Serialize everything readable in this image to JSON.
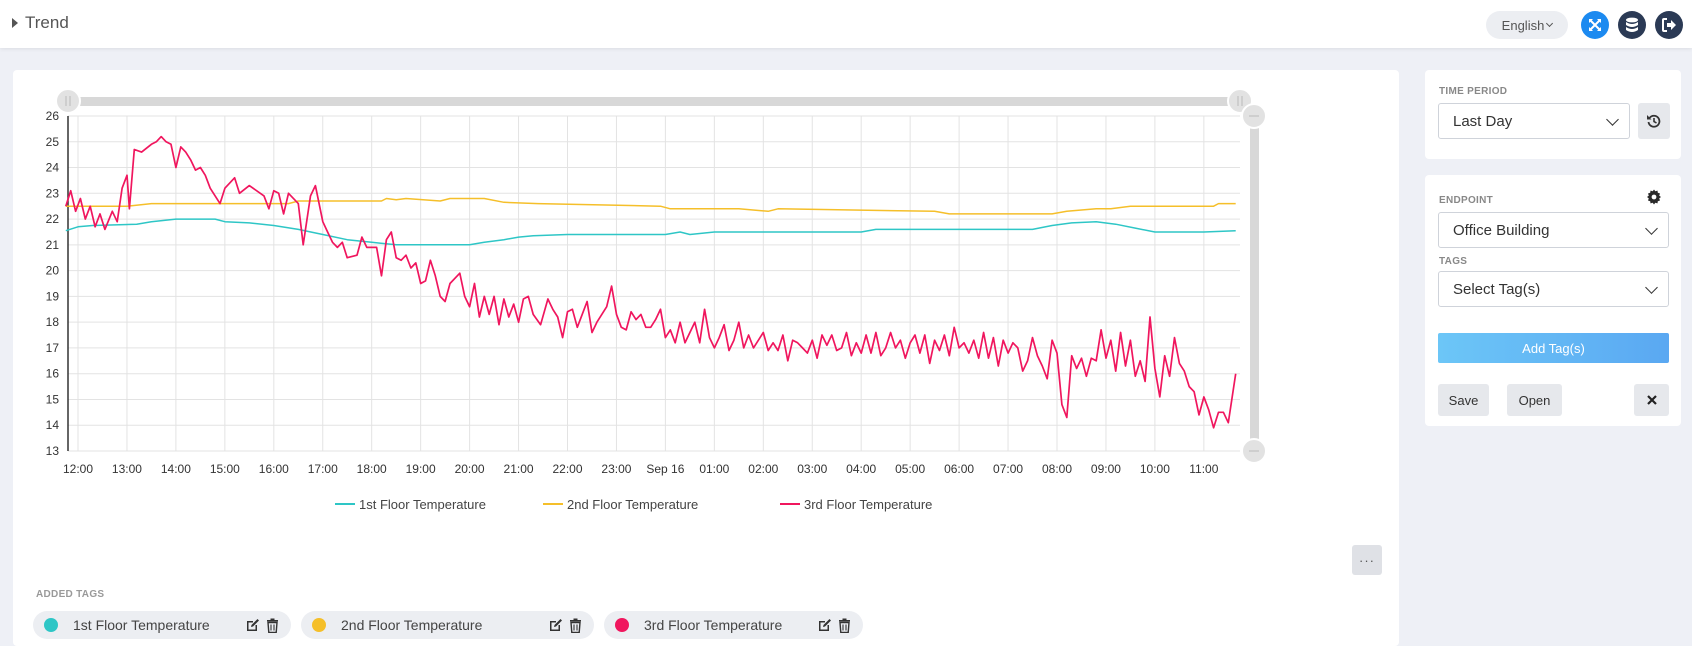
{
  "header": {
    "title": "Trend",
    "language": "English"
  },
  "chart_panel": {
    "more_label": "···",
    "added_tags_label": "ADDED TAGS",
    "tags": [
      {
        "name": "1st Floor Temperature",
        "color": "#2ec6c6"
      },
      {
        "name": "2nd Floor Temperature",
        "color": "#f5bf2a"
      },
      {
        "name": "3rd Floor Temperature",
        "color": "#f0165e"
      }
    ]
  },
  "time_period": {
    "label": "TIME PERIOD",
    "value": "Last Day"
  },
  "endpoint_panel": {
    "endpoint_label": "ENDPOINT",
    "endpoint_value": "Office Building",
    "tags_label": "TAGS",
    "tags_placeholder": "Select Tag(s)",
    "add_tags": "Add Tag(s)",
    "save": "Save",
    "open": "Open"
  },
  "chart_data": {
    "type": "line",
    "title": "",
    "xlabel": "",
    "ylabel": "",
    "ylim": [
      13,
      26
    ],
    "yticks": [
      13,
      14,
      15,
      16,
      17,
      18,
      19,
      20,
      21,
      22,
      23,
      24,
      25,
      26
    ],
    "xticks": [
      "12:00",
      "13:00",
      "14:00",
      "15:00",
      "16:00",
      "17:00",
      "18:00",
      "19:00",
      "20:00",
      "21:00",
      "22:00",
      "23:00",
      "Sep 16",
      "01:00",
      "02:00",
      "03:00",
      "04:00",
      "05:00",
      "06:00",
      "07:00",
      "08:00",
      "09:00",
      "10:00",
      "11:00"
    ],
    "x_range_hours": [
      -0.25,
      23.65
    ],
    "grid": true,
    "legend": "bottom",
    "series": [
      {
        "name": "1st Floor Temperature",
        "color": "#2ec6c6",
        "points": [
          [
            -0.25,
            21.55
          ],
          [
            0,
            21.7
          ],
          [
            0.3,
            21.75
          ],
          [
            1.2,
            21.8
          ],
          [
            1.5,
            21.9
          ],
          [
            2,
            22.0
          ],
          [
            2.8,
            22.0
          ],
          [
            3,
            21.9
          ],
          [
            3.5,
            21.85
          ],
          [
            4,
            21.75
          ],
          [
            4.5,
            21.6
          ],
          [
            5,
            21.4
          ],
          [
            5.5,
            21.2
          ],
          [
            6,
            21.1
          ],
          [
            6.5,
            21.0
          ],
          [
            7.5,
            21.0
          ],
          [
            8,
            21.0
          ],
          [
            8.3,
            21.1
          ],
          [
            8.7,
            21.2
          ],
          [
            9,
            21.3
          ],
          [
            9.3,
            21.35
          ],
          [
            10,
            21.4
          ],
          [
            12,
            21.4
          ],
          [
            12.3,
            21.5
          ],
          [
            12.5,
            21.4
          ],
          [
            13,
            21.5
          ],
          [
            16,
            21.5
          ],
          [
            16.3,
            21.6
          ],
          [
            19,
            21.6
          ],
          [
            19.5,
            21.6
          ],
          [
            19.9,
            21.75
          ],
          [
            20.3,
            21.85
          ],
          [
            20.8,
            21.9
          ],
          [
            21.2,
            21.8
          ],
          [
            21.6,
            21.65
          ],
          [
            22,
            21.5
          ],
          [
            23,
            21.5
          ],
          [
            23.65,
            21.55
          ]
        ]
      },
      {
        "name": "2nd Floor Temperature",
        "color": "#f5bf2a",
        "points": [
          [
            -0.25,
            22.5
          ],
          [
            0.3,
            22.5
          ],
          [
            1,
            22.5
          ],
          [
            1.5,
            22.6
          ],
          [
            2,
            22.6
          ],
          [
            4.3,
            22.6
          ],
          [
            4.5,
            22.7
          ],
          [
            6.2,
            22.7
          ],
          [
            6.3,
            22.8
          ],
          [
            6.5,
            22.75
          ],
          [
            6.7,
            22.8
          ],
          [
            7.4,
            22.7
          ],
          [
            7.6,
            22.8
          ],
          [
            8.3,
            22.8
          ],
          [
            8.7,
            22.65
          ],
          [
            9.4,
            22.6
          ],
          [
            11.9,
            22.5
          ],
          [
            12.1,
            22.4
          ],
          [
            13.5,
            22.4
          ],
          [
            14.1,
            22.3
          ],
          [
            14.3,
            22.4
          ],
          [
            17.5,
            22.3
          ],
          [
            17.8,
            22.2
          ],
          [
            19.9,
            22.2
          ],
          [
            20.2,
            22.3
          ],
          [
            20.8,
            22.4
          ],
          [
            21.1,
            22.4
          ],
          [
            21.5,
            22.5
          ],
          [
            23.2,
            22.5
          ],
          [
            23.3,
            22.6
          ],
          [
            23.65,
            22.6
          ]
        ]
      },
      {
        "name": "3rd Floor Temperature",
        "color": "#f0165e",
        "points": [
          [
            -0.25,
            22.5
          ],
          [
            -0.15,
            23.1
          ],
          [
            -0.05,
            22.3
          ],
          [
            0.05,
            22.8
          ],
          [
            0.15,
            22.0
          ],
          [
            0.25,
            22.5
          ],
          [
            0.35,
            21.7
          ],
          [
            0.45,
            22.2
          ],
          [
            0.55,
            21.6
          ],
          [
            0.7,
            22.3
          ],
          [
            0.8,
            21.9
          ],
          [
            0.9,
            23.2
          ],
          [
            1.0,
            23.7
          ],
          [
            1.05,
            22.4
          ],
          [
            1.15,
            24.7
          ],
          [
            1.3,
            24.6
          ],
          [
            1.5,
            24.9
          ],
          [
            1.6,
            25.0
          ],
          [
            1.7,
            25.2
          ],
          [
            1.8,
            25.0
          ],
          [
            1.9,
            24.9
          ],
          [
            2.0,
            24.0
          ],
          [
            2.1,
            24.8
          ],
          [
            2.2,
            24.6
          ],
          [
            2.3,
            24.3
          ],
          [
            2.4,
            23.9
          ],
          [
            2.5,
            24.0
          ],
          [
            2.6,
            23.7
          ],
          [
            2.7,
            23.2
          ],
          [
            2.9,
            22.6
          ],
          [
            3.0,
            23.2
          ],
          [
            3.2,
            23.6
          ],
          [
            3.3,
            23.0
          ],
          [
            3.5,
            23.3
          ],
          [
            3.8,
            22.9
          ],
          [
            3.9,
            22.4
          ],
          [
            4.0,
            23.1
          ],
          [
            4.1,
            23.0
          ],
          [
            4.2,
            22.2
          ],
          [
            4.3,
            23.0
          ],
          [
            4.5,
            22.6
          ],
          [
            4.6,
            21.0
          ],
          [
            4.75,
            22.9
          ],
          [
            4.85,
            23.3
          ],
          [
            5.0,
            21.9
          ],
          [
            5.1,
            21.5
          ],
          [
            5.2,
            21.1
          ],
          [
            5.3,
            20.9
          ],
          [
            5.4,
            21.1
          ],
          [
            5.5,
            20.5
          ],
          [
            5.7,
            20.6
          ],
          [
            5.8,
            21.3
          ],
          [
            5.9,
            20.9
          ],
          [
            6.1,
            20.9
          ],
          [
            6.2,
            19.8
          ],
          [
            6.3,
            21.2
          ],
          [
            6.4,
            21.5
          ],
          [
            6.5,
            20.5
          ],
          [
            6.6,
            20.4
          ],
          [
            6.7,
            20.6
          ],
          [
            6.8,
            20.1
          ],
          [
            6.9,
            20.3
          ],
          [
            7.0,
            19.5
          ],
          [
            7.1,
            19.6
          ],
          [
            7.2,
            20.4
          ],
          [
            7.3,
            19.8
          ],
          [
            7.4,
            19.0
          ],
          [
            7.5,
            18.8
          ],
          [
            7.6,
            19.5
          ],
          [
            7.8,
            19.9
          ],
          [
            7.9,
            19.0
          ],
          [
            8.0,
            18.6
          ],
          [
            8.1,
            19.5
          ],
          [
            8.2,
            18.2
          ],
          [
            8.3,
            19.0
          ],
          [
            8.4,
            18.3
          ],
          [
            8.5,
            19.0
          ],
          [
            8.6,
            17.9
          ],
          [
            8.7,
            18.9
          ],
          [
            8.8,
            18.2
          ],
          [
            8.9,
            18.7
          ],
          [
            9.0,
            18.0
          ],
          [
            9.1,
            18.9
          ],
          [
            9.2,
            19.0
          ],
          [
            9.3,
            18.3
          ],
          [
            9.45,
            17.9
          ],
          [
            9.6,
            18.9
          ],
          [
            9.7,
            18.5
          ],
          [
            9.8,
            18.2
          ],
          [
            9.9,
            17.4
          ],
          [
            10.0,
            18.4
          ],
          [
            10.1,
            18.5
          ],
          [
            10.2,
            17.8
          ],
          [
            10.3,
            18.3
          ],
          [
            10.4,
            18.8
          ],
          [
            10.5,
            17.6
          ],
          [
            10.6,
            18.0
          ],
          [
            10.7,
            18.3
          ],
          [
            10.8,
            18.6
          ],
          [
            10.9,
            19.4
          ],
          [
            11.0,
            18.3
          ],
          [
            11.1,
            17.8
          ],
          [
            11.2,
            17.7
          ],
          [
            11.3,
            18.4
          ],
          [
            11.4,
            18.1
          ],
          [
            11.5,
            18.3
          ],
          [
            11.6,
            17.8
          ],
          [
            11.7,
            17.8
          ],
          [
            11.8,
            18.1
          ],
          [
            11.9,
            18.5
          ],
          [
            12.0,
            17.4
          ],
          [
            12.1,
            17.7
          ],
          [
            12.2,
            17.2
          ],
          [
            12.3,
            18.0
          ],
          [
            12.4,
            17.2
          ],
          [
            12.5,
            17.6
          ],
          [
            12.6,
            18.0
          ],
          [
            12.7,
            17.2
          ],
          [
            12.8,
            18.5
          ],
          [
            12.9,
            17.4
          ],
          [
            13.0,
            17.0
          ],
          [
            13.1,
            17.4
          ],
          [
            13.2,
            17.9
          ],
          [
            13.3,
            16.9
          ],
          [
            13.4,
            17.3
          ],
          [
            13.5,
            18.0
          ],
          [
            13.6,
            17.0
          ],
          [
            13.7,
            17.5
          ],
          [
            13.8,
            17.0
          ],
          [
            13.9,
            17.3
          ],
          [
            14.0,
            17.6
          ],
          [
            14.1,
            16.9
          ],
          [
            14.2,
            17.2
          ],
          [
            14.3,
            16.9
          ],
          [
            14.4,
            17.5
          ],
          [
            14.5,
            16.5
          ],
          [
            14.6,
            17.3
          ],
          [
            14.7,
            17.2
          ],
          [
            14.8,
            17.0
          ],
          [
            14.9,
            16.8
          ],
          [
            15.0,
            17.3
          ],
          [
            15.1,
            16.6
          ],
          [
            15.2,
            17.5
          ],
          [
            15.3,
            17.1
          ],
          [
            15.4,
            17.5
          ],
          [
            15.5,
            16.9
          ],
          [
            15.6,
            17.0
          ],
          [
            15.7,
            17.6
          ],
          [
            15.8,
            16.7
          ],
          [
            15.9,
            17.2
          ],
          [
            16.0,
            16.8
          ],
          [
            16.1,
            17.5
          ],
          [
            16.2,
            16.8
          ],
          [
            16.3,
            17.6
          ],
          [
            16.4,
            16.7
          ],
          [
            16.5,
            17.0
          ],
          [
            16.6,
            17.6
          ],
          [
            16.7,
            17.0
          ],
          [
            16.8,
            17.3
          ],
          [
            16.9,
            16.6
          ],
          [
            17.0,
            17.2
          ],
          [
            17.1,
            17.5
          ],
          [
            17.2,
            16.8
          ],
          [
            17.3,
            17.5
          ],
          [
            17.4,
            16.4
          ],
          [
            17.5,
            17.3
          ],
          [
            17.6,
            16.9
          ],
          [
            17.7,
            17.5
          ],
          [
            17.8,
            16.7
          ],
          [
            17.9,
            17.8
          ],
          [
            18.0,
            17.0
          ],
          [
            18.1,
            17.2
          ],
          [
            18.2,
            16.8
          ],
          [
            18.3,
            17.3
          ],
          [
            18.4,
            16.6
          ],
          [
            18.5,
            17.6
          ],
          [
            18.6,
            16.6
          ],
          [
            18.7,
            17.4
          ],
          [
            18.8,
            16.3
          ],
          [
            18.9,
            17.3
          ],
          [
            19.0,
            16.8
          ],
          [
            19.1,
            17.2
          ],
          [
            19.2,
            17.0
          ],
          [
            19.3,
            16.1
          ],
          [
            19.4,
            16.5
          ],
          [
            19.5,
            17.4
          ],
          [
            19.6,
            16.7
          ],
          [
            19.7,
            16.3
          ],
          [
            19.8,
            15.8
          ],
          [
            19.9,
            17.3
          ],
          [
            20.0,
            16.8
          ],
          [
            20.1,
            14.8
          ],
          [
            20.2,
            14.3
          ],
          [
            20.3,
            16.7
          ],
          [
            20.4,
            16.2
          ],
          [
            20.5,
            16.6
          ],
          [
            20.6,
            15.9
          ],
          [
            20.7,
            16.6
          ],
          [
            20.8,
            16.5
          ],
          [
            20.9,
            17.7
          ],
          [
            21.0,
            16.6
          ],
          [
            21.1,
            17.3
          ],
          [
            21.2,
            16.1
          ],
          [
            21.3,
            17.6
          ],
          [
            21.4,
            16.3
          ],
          [
            21.5,
            17.3
          ],
          [
            21.6,
            15.9
          ],
          [
            21.7,
            16.5
          ],
          [
            21.8,
            15.7
          ],
          [
            21.9,
            18.2
          ],
          [
            22.0,
            16.2
          ],
          [
            22.1,
            15.1
          ],
          [
            22.2,
            16.7
          ],
          [
            22.3,
            15.9
          ],
          [
            22.4,
            17.4
          ],
          [
            22.5,
            16.4
          ],
          [
            22.6,
            16.1
          ],
          [
            22.7,
            15.5
          ],
          [
            22.8,
            15.3
          ],
          [
            22.9,
            14.4
          ],
          [
            23.0,
            15.1
          ],
          [
            23.1,
            14.6
          ],
          [
            23.2,
            13.9
          ],
          [
            23.3,
            14.5
          ],
          [
            23.4,
            14.5
          ],
          [
            23.5,
            14.1
          ],
          [
            23.65,
            16.0
          ]
        ]
      }
    ]
  }
}
